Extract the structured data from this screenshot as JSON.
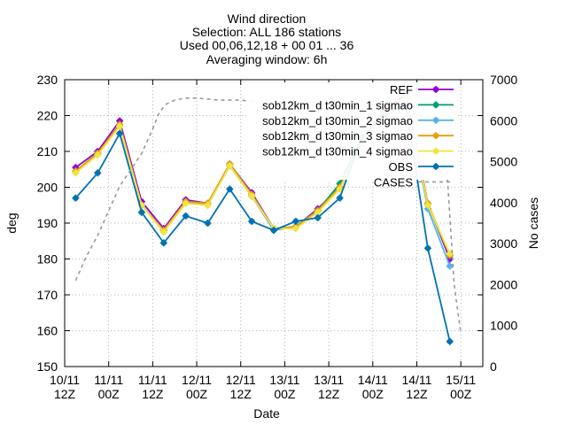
{
  "chart_data": {
    "type": "line",
    "title_lines": [
      "Wind direction",
      "Selection: ALL    186 stations",
      "Used 00,06,12,18 + 00 01 ... 36",
      "Averaging window:  6h"
    ],
    "xlabel": "Date",
    "ylabel": "deg",
    "y2label": "No cases",
    "ylim": [
      150,
      230
    ],
    "y2lim": [
      0,
      7000
    ],
    "yticks": [
      150,
      160,
      170,
      180,
      190,
      200,
      210,
      220,
      230
    ],
    "y2ticks": [
      0,
      1000,
      2000,
      3000,
      4000,
      5000,
      6000,
      7000
    ],
    "xlim": [
      0,
      19
    ],
    "xticks": [
      {
        "x": 0,
        "l1": "10/11",
        "l2": "12Z"
      },
      {
        "x": 2,
        "l1": "11/11",
        "l2": "00Z"
      },
      {
        "x": 4,
        "l1": "11/11",
        "l2": "12Z"
      },
      {
        "x": 6,
        "l1": "12/11",
        "l2": "00Z"
      },
      {
        "x": 8,
        "l1": "12/11",
        "l2": "12Z"
      },
      {
        "x": 10,
        "l1": "13/11",
        "l2": "00Z"
      },
      {
        "x": 12,
        "l1": "13/11",
        "l2": "12Z"
      },
      {
        "x": 14,
        "l1": "14/11",
        "l2": "00Z"
      },
      {
        "x": 16,
        "l1": "14/11",
        "l2": "12Z"
      },
      {
        "x": 18,
        "l1": "15/11",
        "l2": "00Z"
      }
    ],
    "x": [
      0.5,
      1.5,
      2.5,
      3.5,
      4.5,
      5.5,
      6.5,
      7.5,
      8.5,
      9.5,
      10.5,
      11.5,
      12.5,
      13.5,
      14.5,
      15.5,
      16.5,
      17.5
    ],
    "series": [
      {
        "name": "REF",
        "color": "#9400d3",
        "axis": "y1",
        "style": "line-points",
        "values": [
          205.5,
          210,
          218.5,
          196,
          188.5,
          196.5,
          195.5,
          206.5,
          198.5,
          188.5,
          189,
          194,
          200,
          213,
          221,
          226,
          195.5,
          180
        ]
      },
      {
        "name": "sob12km_d t30min_1 sigmao",
        "color": "#009e73",
        "axis": "y1",
        "style": "line-points",
        "values": [
          204.5,
          209.5,
          217.5,
          195,
          188,
          196,
          195.5,
          206,
          197.5,
          188.5,
          189,
          193.5,
          201,
          214,
          220,
          225,
          195,
          181
        ]
      },
      {
        "name": "sob12km_d t30min_2 sigmao",
        "color": "#56b4e9",
        "axis": "y1",
        "style": "line-points",
        "values": [
          204.5,
          209.5,
          217,
          195,
          188,
          196,
          195,
          206,
          197.5,
          188,
          189,
          193.5,
          199.5,
          212.5,
          220,
          225,
          194,
          178
        ]
      },
      {
        "name": "sob12km_d t30min_3 sigmao",
        "color": "#e69f00",
        "axis": "y1",
        "style": "line-points",
        "values": [
          204.5,
          209.5,
          217.5,
          195,
          188,
          196,
          195.5,
          206.5,
          198,
          188.5,
          189,
          193.5,
          200,
          213,
          220.5,
          225,
          195.5,
          181
        ]
      },
      {
        "name": "sob12km_d t30min_4 sigmao",
        "color": "#f0e442",
        "axis": "y1",
        "style": "line-points",
        "values": [
          204,
          209,
          217,
          195,
          187.5,
          195.5,
          195,
          206,
          197.5,
          188.5,
          188.5,
          193,
          199.5,
          212.5,
          220,
          225,
          195,
          181.5
        ]
      },
      {
        "name": "OBS",
        "color": "#0072b2",
        "axis": "y1",
        "style": "line-points",
        "values": [
          197,
          204,
          215,
          193,
          184.5,
          192,
          190,
          199.5,
          190.5,
          188,
          190.5,
          191.5,
          197,
          214,
          220,
          223,
          183,
          157
        ]
      },
      {
        "name": "CASES",
        "color": "#999999",
        "axis": "y2",
        "style": "dashed",
        "x": [
          0.5,
          1,
          1.5,
          2,
          2.5,
          3,
          3.5,
          4,
          4.3,
          4.6,
          5,
          5.5,
          6,
          7,
          8,
          9,
          10,
          11,
          12,
          13,
          14,
          15,
          16,
          16.5,
          17,
          17.4,
          17.7,
          18
        ],
        "values": [
          2100,
          2700,
          3200,
          3800,
          4400,
          4800,
          5200,
          5800,
          6200,
          6400,
          6500,
          6550,
          6550,
          6500,
          6500,
          6450,
          6450,
          6450,
          6400,
          6350,
          6300,
          6200,
          6150,
          6100,
          5900,
          4500,
          2000,
          800
        ]
      }
    ],
    "legend": [
      "REF",
      "sob12km_d t30min_1 sigmao",
      "sob12km_d t30min_2 sigmao",
      "sob12km_d t30min_3 sigmao",
      "sob12km_d t30min_4 sigmao",
      "OBS",
      "CASES"
    ],
    "legend_position": "top-right",
    "grid": true
  }
}
